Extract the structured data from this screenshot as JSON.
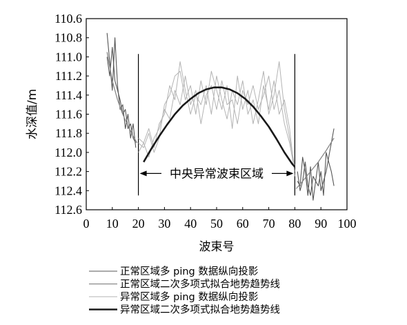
{
  "chart_data": {
    "type": "line",
    "xlabel": "波束号",
    "ylabel": "水深值/m",
    "xlim": [
      0,
      100
    ],
    "ylim": [
      110.6,
      112.6
    ],
    "y_inverted": true,
    "x_ticks": [
      "0",
      "10",
      "20",
      "30",
      "40",
      "50",
      "60",
      "70",
      "80",
      "90",
      "100"
    ],
    "y_ticks": [
      "110.6",
      "110.8",
      "111.0",
      "111.2",
      "111.4",
      "111.6",
      "111.8",
      "112.0",
      "112.2",
      "112.4",
      "112.6"
    ],
    "grid": false,
    "legend_position": "bottom",
    "annotation": {
      "text": "中央异常波束区域",
      "x_range": [
        20,
        80
      ]
    },
    "boundary_lines_x": [
      20,
      80
    ],
    "series": [
      {
        "name": "正常区域多 ping 数据纵向投影",
        "color": "#555555",
        "segments": [
          {
            "x": [
              8,
              9,
              10,
              11,
              12,
              13,
              14,
              15,
              16,
              17,
              18,
              19
            ],
            "y": [
              110.75,
              111.05,
              111.35,
              110.8,
              111.3,
              111.55,
              111.5,
              111.75,
              111.6,
              111.85,
              111.7,
              111.95
            ]
          },
          {
            "x": [
              8,
              9,
              10,
              11,
              12,
              13,
              14,
              15,
              16,
              17,
              18,
              19
            ],
            "y": [
              111.0,
              111.2,
              110.9,
              111.25,
              111.35,
              111.45,
              111.6,
              111.55,
              111.75,
              111.7,
              111.85,
              111.9
            ]
          },
          {
            "x": [
              81,
              82,
              83,
              84,
              85,
              86,
              87,
              88,
              89,
              90,
              91,
              92,
              93,
              94,
              95
            ],
            "y": [
              112.3,
              112.35,
              112.05,
              112.2,
              112.45,
              112.15,
              112.5,
              112.3,
              112.35,
              112.2,
              112.45,
              112.0,
              112.1,
              112.2,
              112.35
            ]
          },
          {
            "x": [
              81,
              82,
              83,
              84,
              85,
              86,
              87,
              88,
              89,
              90,
              91,
              92,
              93,
              94,
              95
            ],
            "y": [
              112.2,
              112.4,
              112.3,
              112.1,
              112.35,
              112.45,
              112.25,
              112.3,
              112.1,
              112.4,
              112.3,
              112.2,
              112.05,
              111.9,
              111.75
            ]
          }
        ]
      },
      {
        "name": "正常区域二次多项式拟合地势趋势线",
        "color": "#888888",
        "segments": [
          {
            "x": [
              8,
              10,
              12,
              14,
              16,
              18,
              19.5
            ],
            "y": [
              110.95,
              111.25,
              111.45,
              111.6,
              111.72,
              111.83,
              111.9
            ]
          },
          {
            "x": [
              80.5,
              83,
              86,
              89,
              92,
              95
            ],
            "y": [
              112.38,
              112.3,
              112.2,
              112.1,
              111.98,
              111.85
            ]
          }
        ]
      },
      {
        "name": "异常区域多 ping 数据纵向投影",
        "color": "#b3b3b3",
        "segments": [
          {
            "x": [
              20,
              22,
              24,
              26,
              28,
              30,
              32,
              34,
              36,
              38,
              40,
              42,
              44,
              46,
              48,
              50,
              52,
              54,
              56,
              58,
              60,
              62,
              64,
              66,
              68,
              70,
              72,
              74,
              76,
              78,
              80
            ],
            "y": [
              111.9,
              111.95,
              111.8,
              112.0,
              111.85,
              111.5,
              111.4,
              111.2,
              111.15,
              111.45,
              111.3,
              111.6,
              111.25,
              111.5,
              111.15,
              111.35,
              111.55,
              111.3,
              111.75,
              111.2,
              111.55,
              111.35,
              111.7,
              111.45,
              111.15,
              111.6,
              111.4,
              111.05,
              111.55,
              111.85,
              112.15
            ]
          },
          {
            "x": [
              20,
              22,
              24,
              26,
              28,
              30,
              32,
              34,
              36,
              38,
              40,
              42,
              44,
              46,
              48,
              50,
              52,
              54,
              56,
              58,
              60,
              62,
              64,
              66,
              68,
              70,
              72,
              74,
              76,
              78,
              80
            ],
            "y": [
              111.85,
              111.9,
              111.75,
              111.95,
              111.7,
              111.6,
              111.3,
              111.45,
              111.05,
              111.35,
              111.6,
              111.4,
              111.5,
              111.3,
              111.6,
              111.2,
              111.45,
              111.65,
              111.35,
              111.5,
              111.25,
              111.6,
              111.45,
              111.7,
              111.3,
              111.55,
              111.25,
              111.6,
              111.45,
              111.75,
              112.25
            ]
          },
          {
            "x": [
              20,
              22,
              24,
              26,
              28,
              30,
              32,
              34,
              36,
              38,
              40,
              42,
              44,
              46,
              48,
              50,
              52,
              54,
              56,
              58,
              60,
              62,
              64,
              66,
              68,
              70,
              72,
              74,
              76,
              78,
              80
            ],
            "y": [
              112.0,
              111.9,
              112.05,
              111.85,
              111.75,
              111.55,
              111.65,
              111.35,
              111.5,
              111.2,
              111.5,
              111.35,
              111.7,
              111.4,
              111.3,
              111.55,
              111.25,
              111.5,
              111.45,
              111.7,
              111.35,
              111.5,
              111.3,
              111.55,
              111.4,
              111.2,
              111.55,
              111.35,
              111.7,
              111.9,
              112.2
            ]
          }
        ]
      },
      {
        "name": "异常区域二次多项式拟合地势趋势线",
        "color": "#1a1a1a",
        "segments": [
          {
            "x": [
              22,
              25,
              28,
              31,
              34,
              37,
              40,
              43,
              46,
              49,
              52,
              55,
              58,
              61,
              64,
              67,
              70,
              73,
              76,
              79,
              80
            ],
            "y": [
              112.1,
              111.96,
              111.83,
              111.71,
              111.6,
              111.51,
              111.44,
              111.38,
              111.34,
              111.32,
              111.32,
              111.34,
              111.38,
              111.44,
              111.52,
              111.62,
              111.73,
              111.86,
              112.0,
              112.12,
              112.15
            ]
          }
        ]
      }
    ]
  }
}
